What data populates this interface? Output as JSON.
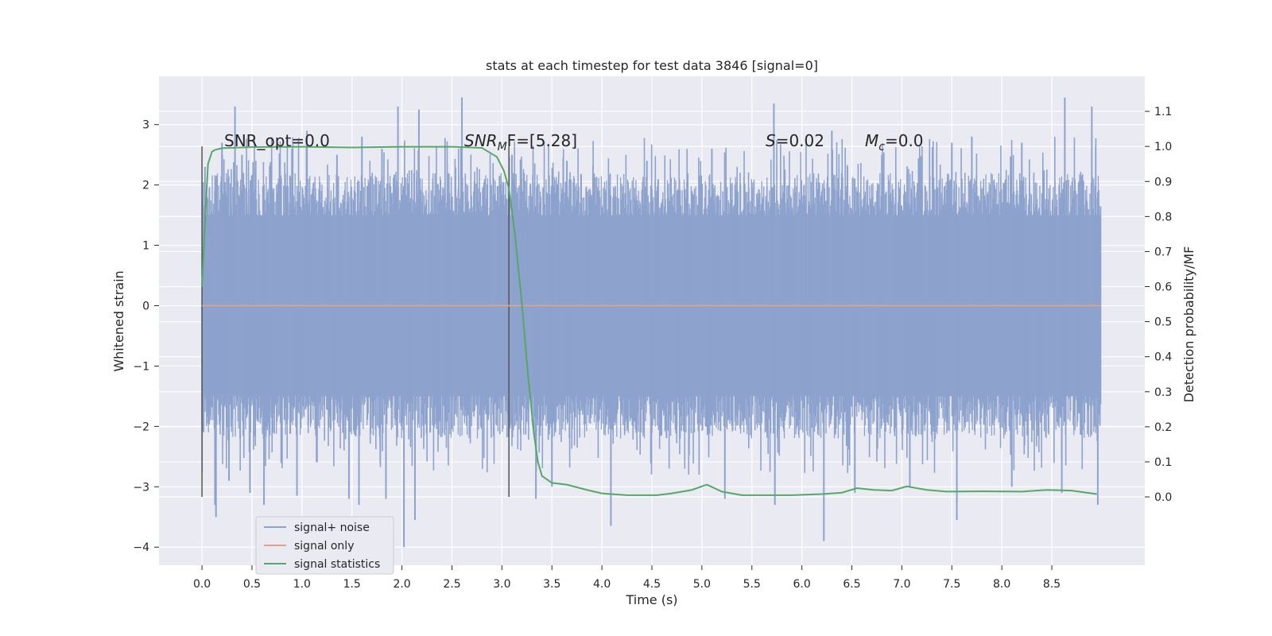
{
  "chart_data": {
    "type": "line",
    "title": "stats at each timestep for test data 3846 [signal=0]",
    "xlabel": "Time (s)",
    "ylabel": "Whitened strain",
    "y2label": "Detection probability/MF",
    "xlim": [
      -0.43,
      9.43
    ],
    "ylim": [
      -4.3,
      3.8
    ],
    "y2lim": [
      -0.195,
      1.2
    ],
    "x_ticks": [
      "0.0",
      "0.5",
      "1.0",
      "1.5",
      "2.0",
      "2.5",
      "3.0",
      "3.5",
      "4.0",
      "4.5",
      "5.0",
      "5.5",
      "6.0",
      "6.5",
      "7.0",
      "7.5",
      "8.0",
      "8.5"
    ],
    "y_ticks": [
      "3",
      "2",
      "1",
      "0",
      "−1",
      "−2",
      "−3",
      "−4"
    ],
    "y2_ticks": [
      "0.0",
      "0.1",
      "0.2",
      "0.3",
      "0.4",
      "0.5",
      "0.6",
      "0.7",
      "0.8",
      "0.9",
      "1.0",
      "1.1"
    ],
    "grid": true,
    "legend_placement": "lower-left",
    "annotations": {
      "snr_opt": "SNR_opt=0.0",
      "snr_mf_main": "SNR",
      "snr_mf_sub": "M",
      "snr_mf_tail": "F=[5.28]",
      "s_main": "S",
      "s_tail": "=0.02",
      "mc_main": "M",
      "mc_sub": "c",
      "mc_tail": "=0.0"
    },
    "vlines_x": [
      0.0,
      3.07
    ],
    "series": [
      {
        "name": "signal+ noise",
        "color": "#8da2cd",
        "noise_band": [
          -1.5,
          1.5
        ],
        "x_range": [
          0.0,
          8.99
        ],
        "peaks": [
          [
            0.03,
            2.3
          ],
          [
            0.2,
            2.7
          ],
          [
            0.33,
            3.3
          ],
          [
            0.4,
            2.5
          ],
          [
            0.9,
            2.6
          ],
          [
            1.05,
            2.9
          ],
          [
            1.35,
            2.5
          ],
          [
            1.6,
            2.8
          ],
          [
            1.8,
            2.6
          ],
          [
            1.96,
            3.3
          ],
          [
            2.17,
            3.25
          ],
          [
            2.6,
            3.45
          ],
          [
            3.1,
            2.5
          ],
          [
            3.65,
            2.4
          ],
          [
            4.45,
            2.4
          ],
          [
            5.1,
            2.6
          ],
          [
            5.72,
            3.35
          ],
          [
            6.3,
            2.9
          ],
          [
            6.8,
            2.5
          ],
          [
            7.5,
            2.7
          ],
          [
            7.7,
            2.8
          ],
          [
            8.2,
            2.7
          ],
          [
            8.63,
            3.45
          ],
          [
            8.9,
            3.3
          ]
        ],
        "troughs": [
          [
            0.13,
            -3.3
          ],
          [
            0.14,
            -3.5
          ],
          [
            0.27,
            -2.9
          ],
          [
            0.48,
            -3.1
          ],
          [
            0.62,
            -3.3
          ],
          [
            0.95,
            -3.15
          ],
          [
            1.47,
            -3.2
          ],
          [
            1.57,
            -3.3
          ],
          [
            1.84,
            -3.2
          ],
          [
            2.02,
            -4.0
          ],
          [
            2.13,
            -3.55
          ],
          [
            3.34,
            -3.2
          ],
          [
            3.5,
            -3.0
          ],
          [
            4.09,
            -3.65
          ],
          [
            5.23,
            -3.2
          ],
          [
            5.73,
            -3.3
          ],
          [
            6.22,
            -3.9
          ],
          [
            6.53,
            -3.1
          ],
          [
            7.08,
            -3.0
          ],
          [
            7.55,
            -3.55
          ],
          [
            8.1,
            -3.0
          ],
          [
            8.6,
            -3.1
          ],
          [
            8.96,
            -3.3
          ]
        ]
      },
      {
        "name": "signal only",
        "color": "#e0a287",
        "x": [
          0.0,
          8.99
        ],
        "y": [
          0.0,
          0.0
        ]
      },
      {
        "name": "signal statistics",
        "color": "#55a868",
        "axis": "right",
        "x": [
          0.0,
          0.03,
          0.06,
          0.1,
          0.13,
          0.2,
          0.5,
          1.0,
          1.5,
          2.0,
          2.5,
          2.8,
          2.95,
          3.02,
          3.07,
          3.13,
          3.2,
          3.26,
          3.32,
          3.36,
          3.4,
          3.5,
          3.65,
          3.85,
          4.0,
          4.25,
          4.55,
          4.7,
          4.9,
          5.05,
          5.2,
          5.4,
          5.6,
          5.9,
          6.2,
          6.4,
          6.55,
          6.72,
          6.9,
          7.05,
          7.25,
          7.45,
          7.8,
          8.2,
          8.45,
          8.7,
          8.95
        ],
        "y": [
          0.6,
          0.78,
          0.95,
          0.985,
          0.99,
          0.995,
          0.998,
          0.999,
          0.997,
          0.999,
          0.999,
          0.996,
          0.97,
          0.93,
          0.88,
          0.75,
          0.55,
          0.35,
          0.18,
          0.1,
          0.06,
          0.04,
          0.035,
          0.02,
          0.01,
          0.005,
          0.005,
          0.01,
          0.02,
          0.035,
          0.015,
          0.005,
          0.005,
          0.005,
          0.008,
          0.012,
          0.025,
          0.02,
          0.018,
          0.03,
          0.02,
          0.015,
          0.016,
          0.015,
          0.02,
          0.018,
          0.008
        ]
      }
    ]
  }
}
